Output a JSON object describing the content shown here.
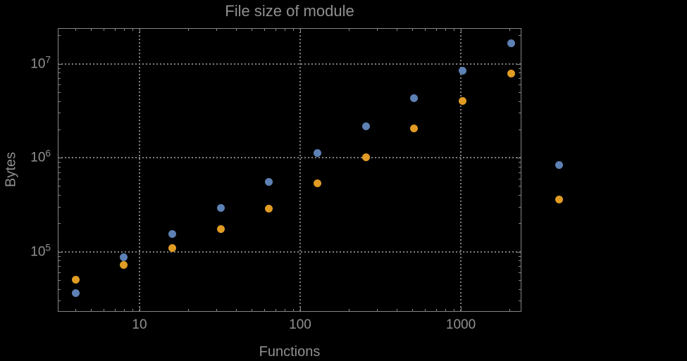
{
  "chart_data": {
    "type": "scatter",
    "title": "File size of module",
    "xlabel": "Functions",
    "ylabel": "Bytes",
    "x_scale": "log",
    "y_scale": "log",
    "x_range": [
      3.1,
      2382
    ],
    "y_range": [
      22900,
      23900000
    ],
    "grid": "dotted",
    "legend": "none",
    "x_ticks": [
      {
        "value": 10,
        "label": "10"
      },
      {
        "value": 100,
        "label": "100"
      },
      {
        "value": 1000,
        "label": "1000"
      }
    ],
    "y_ticks": [
      {
        "value": 100000,
        "base": "10",
        "exp": "5"
      },
      {
        "value": 1000000,
        "base": "10",
        "exp": "6"
      },
      {
        "value": 10000000,
        "base": "10",
        "exp": "7"
      }
    ],
    "series": [
      {
        "name": "series-blue",
        "color": "#5E81B5",
        "points": [
          [
            4,
            36000
          ],
          [
            8,
            87000
          ],
          [
            16,
            153000
          ],
          [
            32,
            294000
          ],
          [
            64,
            553000
          ],
          [
            128,
            1120000
          ],
          [
            256,
            2170000
          ],
          [
            512,
            4310000
          ],
          [
            1024,
            8400000
          ],
          [
            2048,
            16600000
          ],
          [
            4096,
            837000
          ]
        ]
      },
      {
        "name": "series-orange",
        "color": "#E19C24",
        "points": [
          [
            4,
            50600
          ],
          [
            8,
            71500
          ],
          [
            16,
            109000
          ],
          [
            32,
            173000
          ],
          [
            64,
            285000
          ],
          [
            128,
            537000
          ],
          [
            256,
            1010000
          ],
          [
            512,
            2040000
          ],
          [
            1024,
            3990000
          ],
          [
            2048,
            7920000
          ],
          [
            4096,
            360000
          ]
        ]
      }
    ],
    "colors": {
      "background": "#000000",
      "text": "#909090",
      "frame": "#858585",
      "grid": "#7e7e7e"
    }
  }
}
